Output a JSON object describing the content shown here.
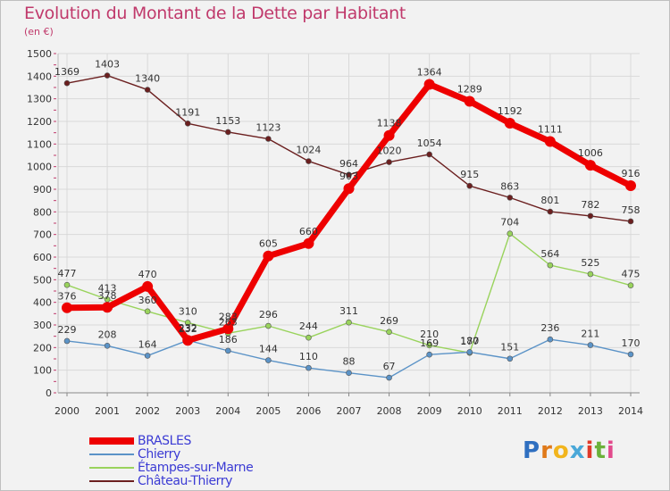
{
  "chart_data": {
    "type": "line",
    "title": "Evolution du Montant de la Dette par Habitant",
    "unit_label": "(en €)",
    "categories": [
      "2000",
      "2001",
      "2002",
      "2003",
      "2004",
      "2005",
      "2006",
      "2007",
      "2008",
      "2009",
      "2010",
      "2011",
      "2012",
      "2013",
      "2014"
    ],
    "ylim": [
      0,
      1500
    ],
    "yticks": [
      0,
      100,
      200,
      300,
      400,
      500,
      600,
      700,
      800,
      900,
      1000,
      1100,
      1200,
      1300,
      1400,
      1500
    ],
    "grid": true,
    "legend_position": "bottom-left",
    "series": [
      {
        "name": "BRASLES",
        "color": "#ee0000",
        "values": [
          376,
          378,
          470,
          232,
          283,
          605,
          660,
          903,
          1138,
          1364,
          1289,
          1192,
          1111,
          1006,
          916
        ]
      },
      {
        "name": "Chierry",
        "color": "#5b93c7",
        "values": [
          229,
          208,
          164,
          232,
          186,
          144,
          110,
          88,
          67,
          169,
          180,
          151,
          236,
          211,
          170
        ]
      },
      {
        "name": "Étampes-sur-Marne",
        "color": "#99d35c",
        "values": [
          477,
          413,
          360,
          310,
          263,
          296,
          244,
          311,
          269,
          210,
          177,
          704,
          564,
          525,
          475
        ]
      },
      {
        "name": "Château-Thierry",
        "color": "#6b1f1f",
        "values": [
          1369,
          1403,
          1340,
          1191,
          1153,
          1123,
          1024,
          964,
          1020,
          1054,
          915,
          863,
          801,
          782,
          758
        ]
      }
    ]
  },
  "brand": {
    "letters": [
      "P",
      "r",
      "o",
      "x",
      "i",
      "t",
      "i"
    ],
    "colors": [
      "#2f6fc0",
      "#e07a1a",
      "#f2b51d",
      "#4aa8d8",
      "#e03a2a",
      "#6bb13a",
      "#e24a8c"
    ]
  }
}
